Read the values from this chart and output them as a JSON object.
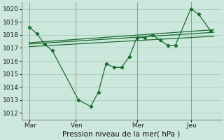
{
  "background_color": "#cce8dc",
  "grid_color": "#aaccbb",
  "line_color": "#1a6b30",
  "xlabel": "Pression niveau de la mer( hPa )",
  "ylim": [
    1011.5,
    1020.5
  ],
  "yticks": [
    1012,
    1013,
    1014,
    1015,
    1016,
    1017,
    1018,
    1019,
    1020
  ],
  "day_labels": [
    " Mar",
    " Ven",
    " Mer",
    " Jeu"
  ],
  "day_positions": [
    0.0,
    3.0,
    7.0,
    10.5
  ],
  "xlim": [
    -0.5,
    12.5
  ],
  "series1_x": [
    0,
    0.5,
    1.0,
    1.5,
    3.2,
    4.0,
    4.5,
    5.0,
    5.5,
    6.0,
    6.5,
    7.0,
    7.5,
    8.0,
    8.5,
    9.0,
    9.5,
    10.5,
    11.0,
    11.8
  ],
  "series1_y": [
    1018.6,
    1018.1,
    1017.3,
    1016.8,
    1013.0,
    1012.5,
    1013.6,
    1015.8,
    1015.5,
    1015.5,
    1016.3,
    1017.8,
    1017.8,
    1018.0,
    1017.6,
    1017.2,
    1017.2,
    1020.0,
    1019.6,
    1018.3
  ],
  "series2_x": [
    0,
    12
  ],
  "series2_y": [
    1017.3,
    1018.2
  ],
  "series3_x": [
    0,
    12
  ],
  "series3_y": [
    1017.1,
    1017.9
  ],
  "series4_x": [
    0,
    12
  ],
  "series4_y": [
    1017.4,
    1018.4
  ]
}
